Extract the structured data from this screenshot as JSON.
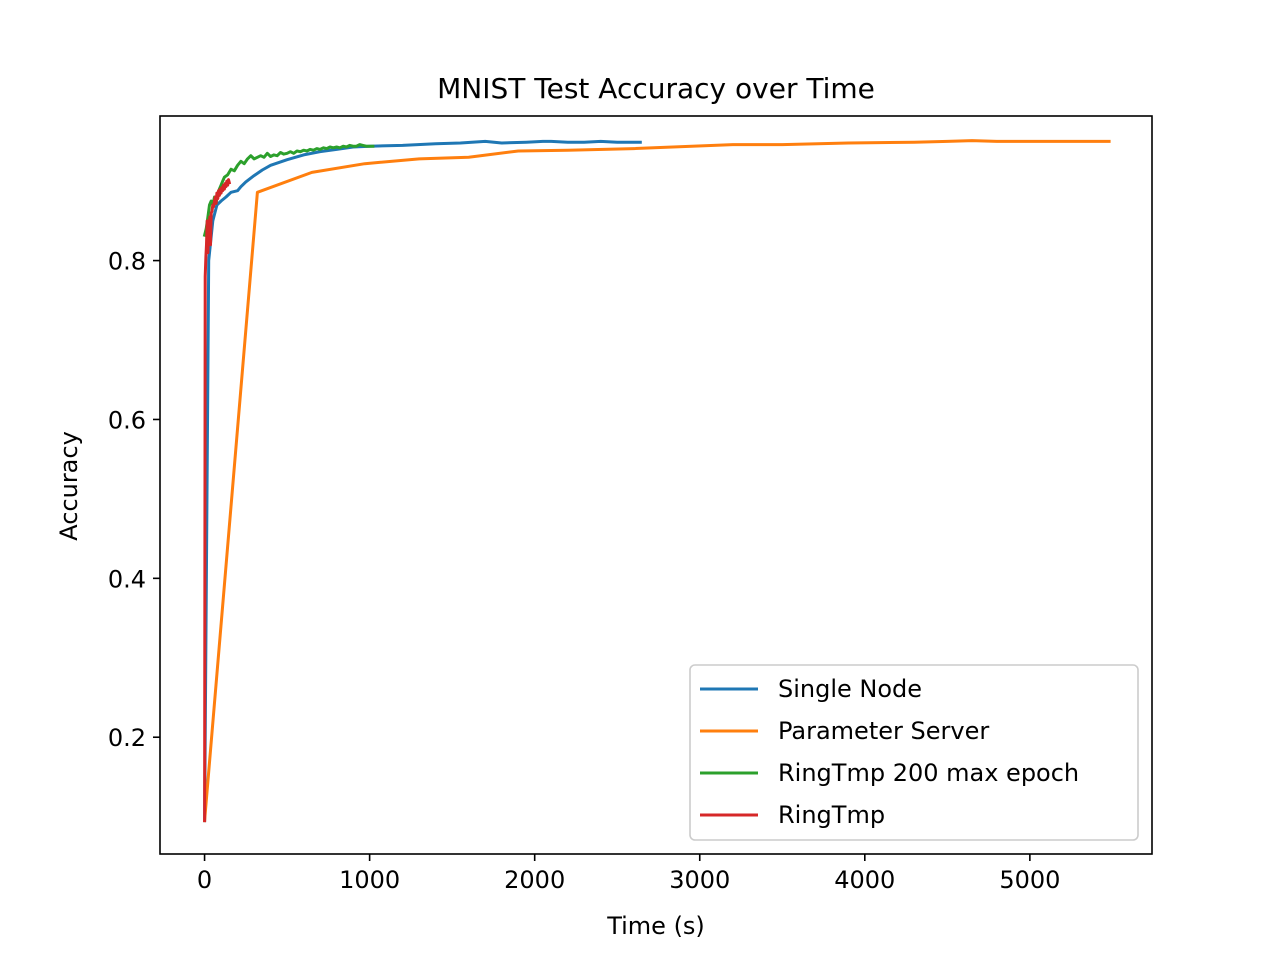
{
  "chart_data": {
    "type": "line",
    "title": "MNIST Test Accuracy over Time",
    "xlabel": "Time (s)",
    "ylabel": "Accuracy",
    "xlim": [
      -270,
      5740
    ],
    "ylim": [
      0.053,
      0.982
    ],
    "xticks": [
      0,
      1000,
      2000,
      3000,
      4000,
      5000
    ],
    "xtick_labels": [
      "0",
      "1000",
      "2000",
      "3000",
      "4000",
      "5000"
    ],
    "yticks": [
      0.2,
      0.4,
      0.6,
      0.8
    ],
    "ytick_labels": [
      "0.2",
      "0.4",
      "0.6",
      "0.8"
    ],
    "grid": false,
    "legend_position": "lower-right",
    "series": [
      {
        "name": "Single Node",
        "color": "#1f77b4",
        "x": [
          0,
          25,
          50,
          75,
          100,
          130,
          160,
          200,
          220,
          250,
          300,
          350,
          400,
          500,
          600,
          700,
          800,
          900,
          1000,
          1200,
          1400,
          1550,
          1700,
          1800,
          1950,
          2050,
          2100,
          2200,
          2300,
          2400,
          2500,
          2640
        ],
        "y": [
          0.095,
          0.8,
          0.85,
          0.87,
          0.875,
          0.88,
          0.886,
          0.888,
          0.893,
          0.899,
          0.907,
          0.914,
          0.92,
          0.927,
          0.933,
          0.937,
          0.94,
          0.943,
          0.944,
          0.945,
          0.947,
          0.948,
          0.95,
          0.948,
          0.949,
          0.95,
          0.95,
          0.949,
          0.949,
          0.95,
          0.949,
          0.949
        ]
      },
      {
        "name": "Parameter Server",
        "color": "#ff7f0e",
        "x": [
          0,
          320,
          650,
          970,
          1300,
          1600,
          1900,
          2200,
          2600,
          3200,
          3500,
          3900,
          4300,
          4500,
          4650,
          4800,
          5000,
          5200,
          5480
        ],
        "y": [
          0.095,
          0.886,
          0.911,
          0.922,
          0.928,
          0.93,
          0.938,
          0.939,
          0.941,
          0.946,
          0.946,
          0.948,
          0.949,
          0.95,
          0.951,
          0.95,
          0.95,
          0.95,
          0.95
        ]
      },
      {
        "name": "RingTmp 200 max epoch",
        "color": "#2ca02c",
        "x": [
          0,
          10,
          20,
          30,
          40,
          50,
          60,
          70,
          80,
          90,
          100,
          110,
          120,
          140,
          160,
          180,
          200,
          220,
          240,
          260,
          280,
          300,
          320,
          340,
          360,
          380,
          400,
          420,
          440,
          460,
          480,
          500,
          520,
          540,
          560,
          580,
          600,
          620,
          640,
          660,
          680,
          700,
          720,
          740,
          760,
          780,
          800,
          820,
          840,
          860,
          880,
          900,
          920,
          940,
          960,
          980,
          1000,
          1020
        ],
        "y": [
          0.832,
          0.84,
          0.855,
          0.87,
          0.875,
          0.87,
          0.88,
          0.872,
          0.885,
          0.89,
          0.895,
          0.9,
          0.905,
          0.908,
          0.915,
          0.913,
          0.92,
          0.925,
          0.922,
          0.928,
          0.932,
          0.928,
          0.93,
          0.932,
          0.93,
          0.935,
          0.931,
          0.933,
          0.932,
          0.936,
          0.934,
          0.935,
          0.937,
          0.935,
          0.938,
          0.937,
          0.939,
          0.938,
          0.94,
          0.939,
          0.941,
          0.94,
          0.942,
          0.941,
          0.943,
          0.942,
          0.943,
          0.942,
          0.944,
          0.943,
          0.945,
          0.944,
          0.944,
          0.946,
          0.945,
          0.944,
          0.944,
          0.944
        ]
      },
      {
        "name": "RingTmp",
        "color": "#d62728",
        "x": [
          0,
          4,
          8,
          12,
          16,
          20,
          24,
          28,
          32,
          36,
          40,
          45,
          50,
          55,
          60,
          65,
          70,
          75,
          80,
          85,
          90,
          95,
          100,
          105,
          110,
          115,
          120,
          125,
          130,
          135,
          140,
          145,
          150
        ],
        "y": [
          0.095,
          0.78,
          0.805,
          0.82,
          0.85,
          0.81,
          0.845,
          0.83,
          0.855,
          0.82,
          0.86,
          0.862,
          0.87,
          0.868,
          0.875,
          0.88,
          0.872,
          0.885,
          0.878,
          0.888,
          0.882,
          0.89,
          0.885,
          0.892,
          0.888,
          0.895,
          0.89,
          0.897,
          0.893,
          0.9,
          0.895,
          0.902,
          0.898
        ]
      }
    ]
  }
}
